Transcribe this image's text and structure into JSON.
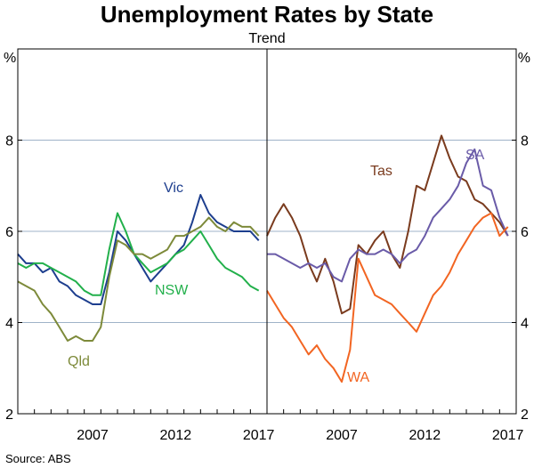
{
  "chart_data": {
    "type": "line",
    "title": "Unemployment Rates by State",
    "subtitle": "Trend",
    "source": "Source:   ABS",
    "y_unit": "%",
    "ylim": [
      2,
      10
    ],
    "yticks": [
      2,
      4,
      6,
      8
    ],
    "xlim": [
      2003.0,
      2018.0
    ],
    "xticks": [
      2007,
      2012,
      2017
    ],
    "grid": true,
    "panels": [
      {
        "name": "left",
        "series": [
          {
            "name": "Vic",
            "color": "#1d3e8e",
            "x": [
              2003.0,
              2003.5,
              2004.0,
              2004.5,
              2005.0,
              2005.5,
              2006.0,
              2006.5,
              2007.0,
              2007.5,
              2008.0,
              2008.5,
              2009.0,
              2009.5,
              2010.0,
              2010.5,
              2011.0,
              2011.5,
              2012.0,
              2012.5,
              2013.0,
              2013.5,
              2014.0,
              2014.5,
              2015.0,
              2015.5,
              2016.0,
              2016.5,
              2017.0,
              2017.5
            ],
            "values": [
              5.5,
              5.3,
              5.3,
              5.1,
              5.2,
              4.9,
              4.8,
              4.6,
              4.5,
              4.4,
              4.4,
              5.1,
              6.0,
              5.8,
              5.5,
              5.2,
              4.9,
              5.1,
              5.3,
              5.5,
              5.7,
              6.2,
              6.8,
              6.4,
              6.2,
              6.1,
              6.0,
              6.0,
              6.0,
              5.8
            ]
          },
          {
            "name": "NSW",
            "color": "#22b04b",
            "x": [
              2003.0,
              2003.5,
              2004.0,
              2004.5,
              2005.0,
              2005.5,
              2006.0,
              2006.5,
              2007.0,
              2007.5,
              2008.0,
              2008.5,
              2009.0,
              2009.5,
              2010.0,
              2010.5,
              2011.0,
              2011.5,
              2012.0,
              2012.5,
              2013.0,
              2013.5,
              2014.0,
              2014.5,
              2015.0,
              2015.5,
              2016.0,
              2016.5,
              2017.0,
              2017.5
            ],
            "values": [
              5.3,
              5.2,
              5.3,
              5.3,
              5.2,
              5.1,
              5.0,
              4.9,
              4.7,
              4.6,
              4.6,
              5.6,
              6.4,
              6.0,
              5.5,
              5.3,
              5.1,
              5.2,
              5.3,
              5.5,
              5.6,
              5.8,
              6.0,
              5.7,
              5.4,
              5.2,
              5.1,
              5.0,
              4.8,
              4.7
            ]
          },
          {
            "name": "Qld",
            "color": "#7d8a3a",
            "x": [
              2003.0,
              2003.5,
              2004.0,
              2004.5,
              2005.0,
              2005.5,
              2006.0,
              2006.5,
              2007.0,
              2007.5,
              2008.0,
              2008.5,
              2009.0,
              2009.5,
              2010.0,
              2010.5,
              2011.0,
              2011.5,
              2012.0,
              2012.5,
              2013.0,
              2013.5,
              2014.0,
              2014.5,
              2015.0,
              2015.5,
              2016.0,
              2016.5,
              2017.0,
              2017.5
            ],
            "values": [
              4.9,
              4.8,
              4.7,
              4.4,
              4.2,
              3.9,
              3.6,
              3.7,
              3.6,
              3.6,
              3.9,
              5.0,
              5.8,
              5.7,
              5.5,
              5.5,
              5.4,
              5.5,
              5.6,
              5.9,
              5.9,
              6.0,
              6.1,
              6.3,
              6.1,
              6.0,
              6.2,
              6.1,
              6.1,
              5.9
            ]
          }
        ],
        "labels": [
          "Vic",
          "NSW",
          "Qld"
        ]
      },
      {
        "name": "right",
        "series": [
          {
            "name": "Tas",
            "color": "#7a3b1e",
            "x": [
              2003.0,
              2003.5,
              2004.0,
              2004.5,
              2005.0,
              2005.5,
              2006.0,
              2006.5,
              2007.0,
              2007.5,
              2008.0,
              2008.5,
              2009.0,
              2009.5,
              2010.0,
              2010.5,
              2011.0,
              2011.5,
              2012.0,
              2012.5,
              2013.0,
              2013.5,
              2014.0,
              2014.5,
              2015.0,
              2015.5,
              2016.0,
              2016.5,
              2017.0,
              2017.5
            ],
            "values": [
              5.9,
              6.3,
              6.6,
              6.3,
              5.9,
              5.3,
              4.9,
              5.4,
              4.9,
              4.2,
              4.3,
              5.7,
              5.5,
              5.8,
              6.0,
              5.5,
              5.2,
              6.0,
              7.0,
              6.9,
              7.5,
              8.1,
              7.6,
              7.2,
              7.1,
              6.7,
              6.6,
              6.4,
              6.2,
              5.9
            ]
          },
          {
            "name": "SA",
            "color": "#6a5ba8",
            "x": [
              2003.0,
              2003.5,
              2004.0,
              2004.5,
              2005.0,
              2005.5,
              2006.0,
              2006.5,
              2007.0,
              2007.5,
              2008.0,
              2008.5,
              2009.0,
              2009.5,
              2010.0,
              2010.5,
              2011.0,
              2011.5,
              2012.0,
              2012.5,
              2013.0,
              2013.5,
              2014.0,
              2014.5,
              2015.0,
              2015.5,
              2016.0,
              2016.5,
              2017.0,
              2017.5
            ],
            "values": [
              5.5,
              5.5,
              5.4,
              5.3,
              5.2,
              5.3,
              5.2,
              5.3,
              5.0,
              4.9,
              5.4,
              5.6,
              5.5,
              5.5,
              5.6,
              5.5,
              5.3,
              5.5,
              5.6,
              5.9,
              6.3,
              6.5,
              6.7,
              7.0,
              7.5,
              7.8,
              7.0,
              6.9,
              6.3,
              5.9
            ]
          },
          {
            "name": "WA",
            "color": "#f26522",
            "x": [
              2003.0,
              2003.5,
              2004.0,
              2004.5,
              2005.0,
              2005.5,
              2006.0,
              2006.5,
              2007.0,
              2007.5,
              2008.0,
              2008.5,
              2009.0,
              2009.5,
              2010.0,
              2010.5,
              2011.0,
              2011.5,
              2012.0,
              2012.5,
              2013.0,
              2013.5,
              2014.0,
              2014.5,
              2015.0,
              2015.5,
              2016.0,
              2016.5,
              2017.0,
              2017.5
            ],
            "values": [
              4.7,
              4.4,
              4.1,
              3.9,
              3.6,
              3.3,
              3.5,
              3.2,
              3.0,
              2.7,
              3.4,
              5.4,
              5.0,
              4.6,
              4.5,
              4.4,
              4.2,
              4.0,
              3.8,
              4.2,
              4.6,
              4.8,
              5.1,
              5.5,
              5.8,
              6.1,
              6.3,
              6.4,
              5.9,
              6.1
            ]
          }
        ],
        "labels": [
          "Tas",
          "SA",
          "WA"
        ]
      }
    ]
  }
}
